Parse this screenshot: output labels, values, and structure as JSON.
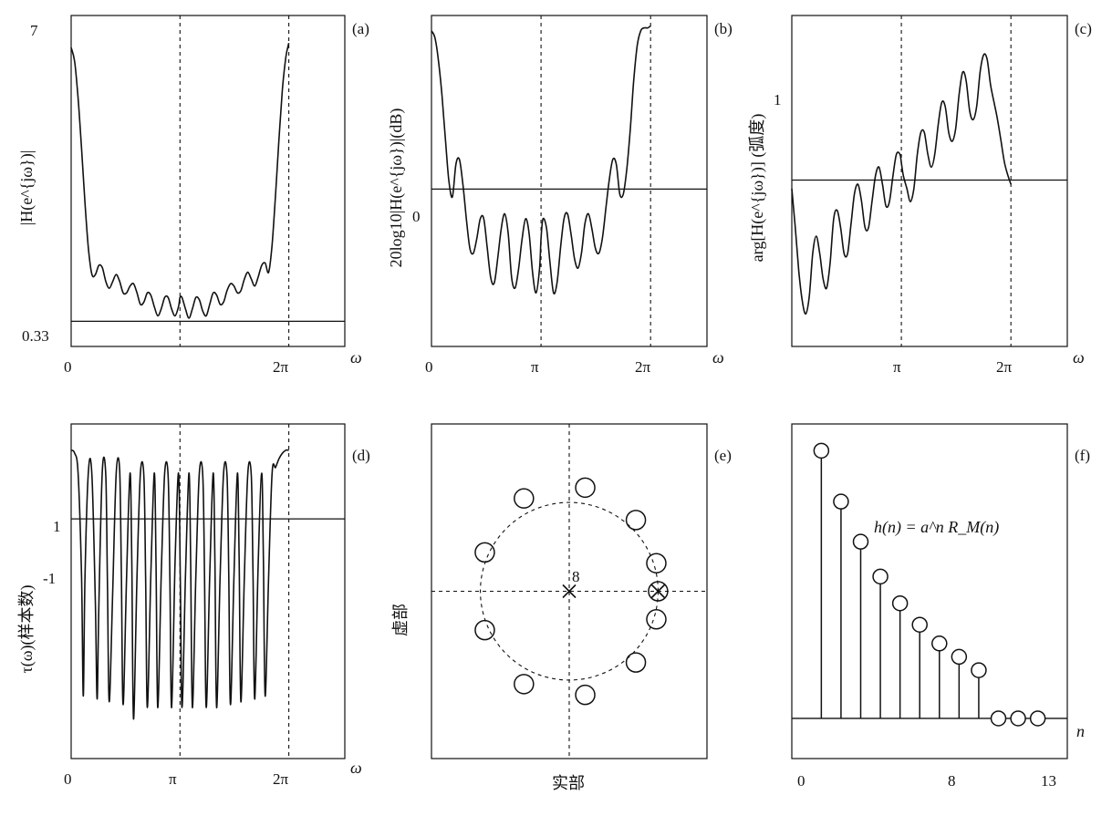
{
  "chart_data": [
    {
      "id": "a",
      "type": "line",
      "panel_label": "(a)",
      "ylabel": "|H(e^{jω})|",
      "xlabel": "ω",
      "xticks": [
        "0",
        "2π"
      ],
      "yticks": [
        "7",
        "0.33"
      ],
      "xlim": [
        0,
        7.9
      ],
      "ylim": [
        0,
        7
      ],
      "grid": false,
      "reference_lines": {
        "vertical_dashed_at": [
          "π",
          "2π"
        ],
        "horizontal_solid_at": 0.33
      },
      "series": [
        {
          "x": [
            0.0,
            0.1,
            0.2,
            0.3,
            0.4,
            0.5,
            0.6,
            0.7,
            0.8,
            0.9,
            1.0,
            1.1,
            1.2,
            1.3,
            1.4,
            1.5,
            1.6,
            1.7,
            1.8,
            1.9,
            2.0,
            2.1,
            2.2,
            2.3,
            2.4,
            2.5,
            2.6,
            2.7,
            2.8,
            2.9,
            3.0,
            3.1,
            3.1416,
            3.2,
            3.3,
            3.4,
            3.5,
            3.6,
            3.7,
            3.8,
            3.9,
            4.0,
            4.1,
            4.2,
            4.3,
            4.4,
            4.5,
            4.6,
            4.7,
            4.8,
            4.9,
            5.0,
            5.1,
            5.2,
            5.3,
            5.4,
            5.5,
            5.6,
            5.7,
            5.8,
            5.9,
            6.0,
            6.1,
            6.2,
            6.2832
          ],
          "y": [
            6.3,
            6.0,
            5.2,
            4.1,
            2.9,
            1.9,
            1.35,
            1.35,
            1.55,
            1.5,
            1.2,
            1.05,
            1.2,
            1.35,
            1.2,
            0.95,
            0.95,
            1.1,
            1.15,
            0.95,
            0.7,
            0.75,
            0.95,
            0.9,
            0.65,
            0.45,
            0.6,
            0.85,
            0.85,
            0.6,
            0.45,
            0.65,
            0.85,
            0.85,
            0.6,
            0.4,
            0.6,
            0.85,
            0.8,
            0.55,
            0.45,
            0.7,
            0.95,
            0.9,
            0.7,
            0.75,
            1.0,
            1.15,
            1.1,
            0.95,
            1.0,
            1.25,
            1.4,
            1.25,
            1.1,
            1.3,
            1.55,
            1.6,
            1.4,
            2.0,
            3.1,
            4.3,
            5.4,
            6.1,
            6.4
          ]
        }
      ]
    },
    {
      "id": "b",
      "type": "line",
      "panel_label": "(b)",
      "ylabel": "20log10|H(e^{jω})|(dB)",
      "xlabel": "ω",
      "xticks": [
        "0",
        "π",
        "2π"
      ],
      "yticks": [
        "0"
      ],
      "xlim": [
        0,
        7.9
      ],
      "ylim": [
        -15,
        17
      ],
      "grid": false,
      "reference_lines": {
        "vertical_dashed_at": [
          "π",
          "2π"
        ],
        "horizontal_solid_at": 0
      },
      "series": [
        {
          "x": [
            0.0,
            0.1,
            0.2,
            0.3,
            0.4,
            0.5,
            0.6,
            0.7,
            0.8,
            0.9,
            1.0,
            1.1,
            1.2,
            1.3,
            1.4,
            1.5,
            1.6,
            1.7,
            1.8,
            1.9,
            2.0,
            2.1,
            2.2,
            2.3,
            2.4,
            2.5,
            2.6,
            2.7,
            2.8,
            2.9,
            3.0,
            3.1,
            3.1416,
            3.2,
            3.3,
            3.4,
            3.5,
            3.6,
            3.7,
            3.8,
            3.9,
            4.0,
            4.1,
            4.2,
            4.3,
            4.4,
            4.5,
            4.6,
            4.7,
            4.8,
            4.9,
            5.0,
            5.1,
            5.2,
            5.3,
            5.4,
            5.5,
            5.6,
            5.7,
            5.8,
            5.9,
            6.0,
            6.1,
            6.2,
            6.2832
          ],
          "y": [
            16,
            15.3,
            13,
            9.5,
            5,
            0.8,
            -0.8,
            2.5,
            3,
            0.5,
            -3,
            -6,
            -6.5,
            -5,
            -3,
            -3,
            -6,
            -9,
            -9.5,
            -7,
            -4,
            -2.5,
            -4.5,
            -9,
            -10,
            -8,
            -5,
            -3,
            -4.5,
            -8.5,
            -10.5,
            -8,
            -5,
            -3,
            -4,
            -7.5,
            -10.5,
            -9.5,
            -6,
            -3,
            -2.5,
            -4.5,
            -7,
            -8,
            -6.5,
            -3.5,
            -2.5,
            -4,
            -6,
            -6.5,
            -5,
            -2,
            1,
            3,
            2.5,
            -0.5,
            -0.5,
            2,
            6,
            11,
            14.5,
            16,
            16.3,
            16.3,
            16.5
          ]
        }
      ]
    },
    {
      "id": "c",
      "type": "line",
      "panel_label": "(c)",
      "ylabel": "arg[H(e^{jω})] (弧度)",
      "xlabel": "ω",
      "xticks": [
        "π",
        "2π"
      ],
      "yticks": [
        "1"
      ],
      "xlim": [
        0,
        7.9
      ],
      "ylim": [
        -1.8,
        1.8
      ],
      "grid": false,
      "reference_lines": {
        "vertical_dashed_at": [
          "π",
          "2π"
        ],
        "horizontal_solid_at": 0
      },
      "series": [
        {
          "x": [
            0.0,
            0.1,
            0.2,
            0.3,
            0.4,
            0.5,
            0.6,
            0.7,
            0.8,
            0.9,
            1.0,
            1.1,
            1.2,
            1.3,
            1.4,
            1.5,
            1.6,
            1.7,
            1.8,
            1.9,
            2.0,
            2.1,
            2.2,
            2.3,
            2.4,
            2.5,
            2.6,
            2.7,
            2.8,
            2.9,
            3.0,
            3.1,
            3.1416,
            3.2,
            3.3,
            3.4,
            3.5,
            3.6,
            3.7,
            3.8,
            3.9,
            4.0,
            4.1,
            4.2,
            4.3,
            4.4,
            4.5,
            4.6,
            4.7,
            4.8,
            4.9,
            5.0,
            5.1,
            5.2,
            5.3,
            5.4,
            5.5,
            5.6,
            5.7,
            5.8,
            5.9,
            6.0,
            6.1,
            6.2,
            6.2832
          ],
          "y": [
            -0.1,
            -0.55,
            -1.05,
            -1.4,
            -1.55,
            -1.35,
            -0.85,
            -0.65,
            -0.85,
            -1.15,
            -1.25,
            -0.95,
            -0.45,
            -0.35,
            -0.55,
            -0.85,
            -0.85,
            -0.5,
            -0.15,
            -0.05,
            -0.25,
            -0.55,
            -0.55,
            -0.25,
            0.05,
            0.15,
            -0.05,
            -0.3,
            -0.25,
            0.05,
            0.3,
            0.3,
            0.2,
            0.05,
            -0.1,
            -0.25,
            -0.1,
            0.3,
            0.55,
            0.55,
            0.3,
            0.15,
            0.3,
            0.65,
            0.9,
            0.85,
            0.55,
            0.45,
            0.6,
            1.0,
            1.25,
            1.15,
            0.8,
            0.7,
            0.85,
            1.25,
            1.45,
            1.4,
            1.1,
            0.9,
            0.7,
            0.45,
            0.2,
            0.05,
            -0.05
          ]
        }
      ]
    },
    {
      "id": "d",
      "type": "line",
      "panel_label": "(d)",
      "ylabel": "τ(ω)(样本数)",
      "xlabel": "ω",
      "xticks": [
        "0",
        "π",
        "2π"
      ],
      "yticks": [
        "1",
        "-1"
      ],
      "xlim": [
        0,
        7.9
      ],
      "ylim": [
        -8,
        3
      ],
      "grid": false,
      "reference_lines": {
        "vertical_dashed_at": [
          "π",
          "2π"
        ],
        "horizontal_solid_at": 0
      },
      "series": [
        {
          "x": [
            0.0,
            0.1,
            0.2,
            0.3,
            0.35,
            0.4,
            0.5,
            0.6,
            0.7,
            0.75,
            0.8,
            0.9,
            1.0,
            1.05,
            1.1,
            1.2,
            1.3,
            1.4,
            1.45,
            1.5,
            1.6,
            1.7,
            1.75,
            1.8,
            1.9,
            2.0,
            2.1,
            2.15,
            2.2,
            2.3,
            2.4,
            2.45,
            2.5,
            2.6,
            2.7,
            2.8,
            2.85,
            2.9,
            3.0,
            3.1,
            3.15,
            3.2,
            3.3,
            3.4,
            3.45,
            3.5,
            3.6,
            3.7,
            3.8,
            3.85,
            3.9,
            4.0,
            4.1,
            4.15,
            4.2,
            4.3,
            4.4,
            4.5,
            4.55,
            4.6,
            4.7,
            4.8,
            4.85,
            4.9,
            5.0,
            5.1,
            5.2,
            5.25,
            5.3,
            5.4,
            5.5,
            5.55,
            5.6,
            5.7,
            5.8,
            5.9,
            6.0,
            6.1,
            6.2,
            6.2832
          ],
          "y": [
            2.4,
            2.3,
            1.6,
            -2,
            -6.2,
            -2,
            1.7,
            1.5,
            -3,
            -6.3,
            -3,
            1.7,
            1.5,
            -2.5,
            -6.4,
            -2.5,
            1.6,
            1.7,
            -2,
            -6.5,
            -2,
            1.6,
            -1.5,
            -7,
            -2,
            1.6,
            1.5,
            -2,
            -6.6,
            -2,
            1.6,
            -1.5,
            -6.6,
            -2,
            1.6,
            1.5,
            -2,
            -6.6,
            -1.5,
            1.6,
            -2,
            -6.6,
            -2,
            1.6,
            -1.5,
            -6.6,
            -2,
            1.6,
            1.5,
            -2,
            -6.6,
            -2,
            1.6,
            -1.5,
            -6.6,
            -2,
            1.6,
            1.5,
            -2,
            -6.5,
            -2,
            1.6,
            -1.5,
            -6.4,
            -2,
            1.6,
            1.5,
            -2,
            -6.3,
            -1.5,
            1.6,
            -1.5,
            -6.2,
            -2,
            1.6,
            1.8,
            2.1,
            2.3,
            2.4,
            2.4
          ]
        }
      ]
    },
    {
      "id": "e",
      "type": "scatter",
      "panel_label": "(e)",
      "xlabel": "实部",
      "ylabel": "虚部",
      "annotations": [
        "8"
      ],
      "unit_circle": "dashed",
      "xlim": [
        -1.55,
        1.55
      ],
      "ylim": [
        -1.55,
        1.55
      ],
      "series": [
        {
          "marker": "o",
          "x": [
            0.18,
            0.75,
            0.98,
            0.98,
            0.75,
            0.18,
            -0.51,
            -0.95,
            -0.95,
            -0.51
          ],
          "y": [
            0.96,
            0.66,
            0.26,
            -0.26,
            -0.66,
            -0.96,
            -0.86,
            -0.36,
            0.36,
            0.86
          ]
        },
        {
          "marker": "x",
          "x": [
            0.0,
            1.0
          ],
          "y": [
            0.0,
            0.0
          ]
        },
        {
          "marker": "o",
          "x": [
            1.0
          ],
          "y": [
            0.0
          ]
        }
      ]
    },
    {
      "id": "f",
      "type": "stem",
      "panel_label": "(f)",
      "xlabel": "n",
      "annotation": "h(n) = a^n R_M(n)",
      "xticks": [
        0,
        8,
        13
      ],
      "xlim": [
        -0.5,
        13.5
      ],
      "ylim": [
        -0.15,
        1.1
      ],
      "grid": false,
      "x": [
        1,
        2,
        3,
        4,
        5,
        6,
        7,
        8,
        9,
        10,
        11,
        12
      ],
      "y": [
        1.0,
        0.81,
        0.66,
        0.53,
        0.43,
        0.35,
        0.28,
        0.23,
        0.18,
        0.0,
        0.0,
        0.0
      ]
    }
  ]
}
